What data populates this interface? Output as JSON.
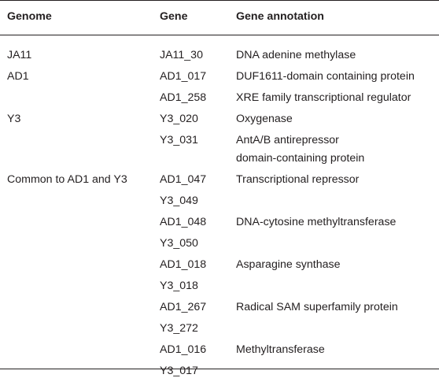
{
  "table": {
    "headers": [
      "Genome",
      "Gene",
      "Gene annotation"
    ],
    "rows": [
      {
        "genome": "JA11",
        "gene": "JA11_30",
        "annotation": [
          "DNA adenine methylase"
        ]
      },
      {
        "genome": "AD1",
        "gene": "AD1_017",
        "annotation": [
          "DUF1611-domain containing protein"
        ]
      },
      {
        "genome": "",
        "gene": "AD1_258",
        "annotation": [
          "XRE family transcriptional regulator"
        ]
      },
      {
        "genome": "Y3",
        "gene": "Y3_020",
        "annotation": [
          "Oxygenase"
        ]
      },
      {
        "genome": "",
        "gene": "Y3_031",
        "annotation": [
          "AntA/B antirepressor",
          "domain-containing protein"
        ]
      },
      {
        "genome": "Common to AD1 and Y3",
        "gene": "AD1_047",
        "annotation": [
          "Transcriptional repressor"
        ]
      },
      {
        "genome": "",
        "gene": "Y3_049",
        "annotation": []
      },
      {
        "genome": "",
        "gene": "AD1_048",
        "annotation": [
          "DNA-cytosine methyltransferase"
        ]
      },
      {
        "genome": "",
        "gene": "Y3_050",
        "annotation": []
      },
      {
        "genome": "",
        "gene": "AD1_018",
        "annotation": [
          "Asparagine synthase"
        ]
      },
      {
        "genome": "",
        "gene": "Y3_018",
        "annotation": []
      },
      {
        "genome": "",
        "gene": "AD1_267",
        "annotation": [
          "Radical SAM superfamily protein"
        ]
      },
      {
        "genome": "",
        "gene": "Y3_272",
        "annotation": []
      },
      {
        "genome": "",
        "gene": "AD1_016",
        "annotation": [
          "Methyltransferase"
        ]
      },
      {
        "genome": "",
        "gene": "Y3_017",
        "annotation": []
      }
    ]
  }
}
